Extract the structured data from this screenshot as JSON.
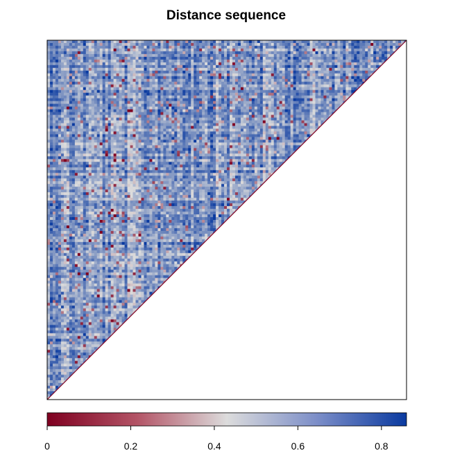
{
  "chart_data": {
    "type": "heatmap",
    "title": "Distance sequence",
    "shape": "upper-triangular",
    "diagonal_value": 0,
    "value_range": [
      0,
      0.86
    ],
    "typical_value": 0.6,
    "colorscale": {
      "low_color": "#7f0020",
      "mid_color": "#dcdcdc",
      "high_color": "#0a3aa0",
      "mid_value": 0.43
    },
    "colorbar": {
      "ticks": [
        0,
        0.2,
        0.4,
        0.6,
        0.8
      ],
      "tick_labels": [
        "0",
        "0.2",
        "0.4",
        "0.6",
        "0.8"
      ],
      "range": [
        0,
        0.86
      ]
    },
    "xlabel": "",
    "ylabel": ""
  }
}
